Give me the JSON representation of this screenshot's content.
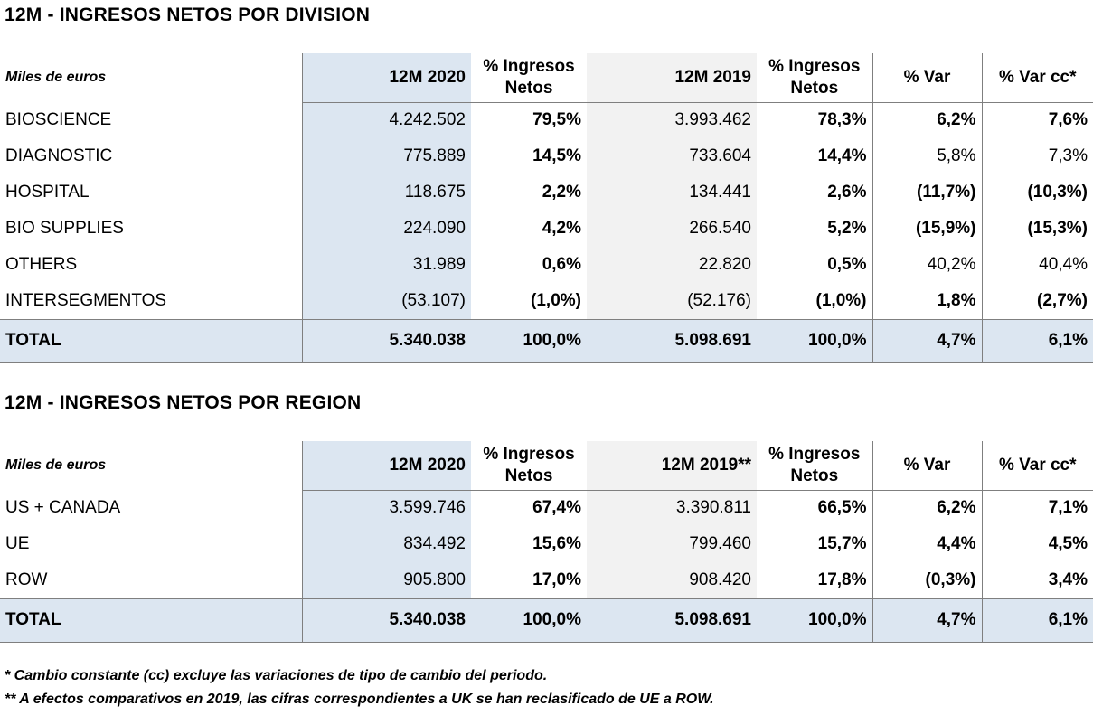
{
  "division": {
    "title": "12M - INGRESOS NETOS POR DIVISION",
    "header": {
      "units": "Miles de euros",
      "col_2020": "12M 2020",
      "col_pct2020": [
        "% Ingresos",
        "Netos"
      ],
      "col_2019": "12M 2019",
      "col_pct2019": [
        "% Ingresos",
        "Netos"
      ],
      "col_var": "% Var",
      "col_varcc": "% Var cc*"
    },
    "rows": [
      {
        "label": "BIOSCIENCE",
        "v2020": "4.242.502",
        "p2020": "79,5%",
        "v2019": "3.993.462",
        "p2019": "78,3%",
        "var": "6,2%",
        "varcc": "7,6%",
        "var_bold": true,
        "varcc_bold": true
      },
      {
        "label": "DIAGNOSTIC",
        "v2020": "775.889",
        "p2020": "14,5%",
        "v2019": "733.604",
        "p2019": "14,4%",
        "var": "5,8%",
        "varcc": "7,3%",
        "var_bold": false,
        "varcc_bold": false
      },
      {
        "label": "HOSPITAL",
        "v2020": "118.675",
        "p2020": "2,2%",
        "v2019": "134.441",
        "p2019": "2,6%",
        "var": "(11,7%)",
        "varcc": "(10,3%)",
        "var_bold": true,
        "varcc_bold": true
      },
      {
        "label": "BIO SUPPLIES",
        "v2020": "224.090",
        "p2020": "4,2%",
        "v2019": "266.540",
        "p2019": "5,2%",
        "var": "(15,9%)",
        "varcc": "(15,3%)",
        "var_bold": true,
        "varcc_bold": true
      },
      {
        "label": "OTHERS",
        "v2020": "31.989",
        "p2020": "0,6%",
        "v2019": "22.820",
        "p2019": "0,5%",
        "var": "40,2%",
        "varcc": "40,4%",
        "var_bold": false,
        "varcc_bold": false
      },
      {
        "label": "INTERSEGMENTOS",
        "v2020": "(53.107)",
        "p2020": "(1,0%)",
        "v2019": "(52.176)",
        "p2019": "(1,0%)",
        "var": "1,8%",
        "varcc": "(2,7%)",
        "var_bold": true,
        "varcc_bold": true
      }
    ],
    "total": {
      "label": "TOTAL",
      "v2020": "5.340.038",
      "p2020": "100,0%",
      "v2019": "5.098.691",
      "p2019": "100,0%",
      "var": "4,7%",
      "varcc": "6,1%"
    }
  },
  "region": {
    "title": "12M - INGRESOS NETOS POR REGION",
    "header": {
      "units": "Miles de euros",
      "col_2020": "12M 2020",
      "col_pct2020": [
        "% Ingresos",
        "Netos"
      ],
      "col_2019": "12M 2019**",
      "col_pct2019": [
        "% Ingresos",
        "Netos"
      ],
      "col_var": "% Var",
      "col_varcc": "% Var cc*"
    },
    "rows": [
      {
        "label": "US + CANADA",
        "v2020": "3.599.746",
        "p2020": "67,4%",
        "v2019": "3.390.811",
        "p2019": "66,5%",
        "var": "6,2%",
        "varcc": "7,1%",
        "var_bold": true,
        "varcc_bold": true
      },
      {
        "label": "UE",
        "v2020": "834.492",
        "p2020": "15,6%",
        "v2019": "799.460",
        "p2019": "15,7%",
        "var": "4,4%",
        "varcc": "4,5%",
        "var_bold": true,
        "varcc_bold": true
      },
      {
        "label": "ROW",
        "v2020": "905.800",
        "p2020": "17,0%",
        "v2019": "908.420",
        "p2019": "17,8%",
        "var": "(0,3%)",
        "varcc": "3,4%",
        "var_bold": true,
        "varcc_bold": true
      }
    ],
    "total": {
      "label": "TOTAL",
      "v2020": "5.340.038",
      "p2020": "100,0%",
      "v2019": "5.098.691",
      "p2019": "100,0%",
      "var": "4,7%",
      "varcc": "6,1%"
    }
  },
  "footnotes": [
    "* Cambio constante (cc) excluye las variaciones de tipo de cambio del periodo.",
    "** A efectos comparativos en 2019, las cifras correspondientes a UK se han reclasificado de UE a ROW."
  ]
}
